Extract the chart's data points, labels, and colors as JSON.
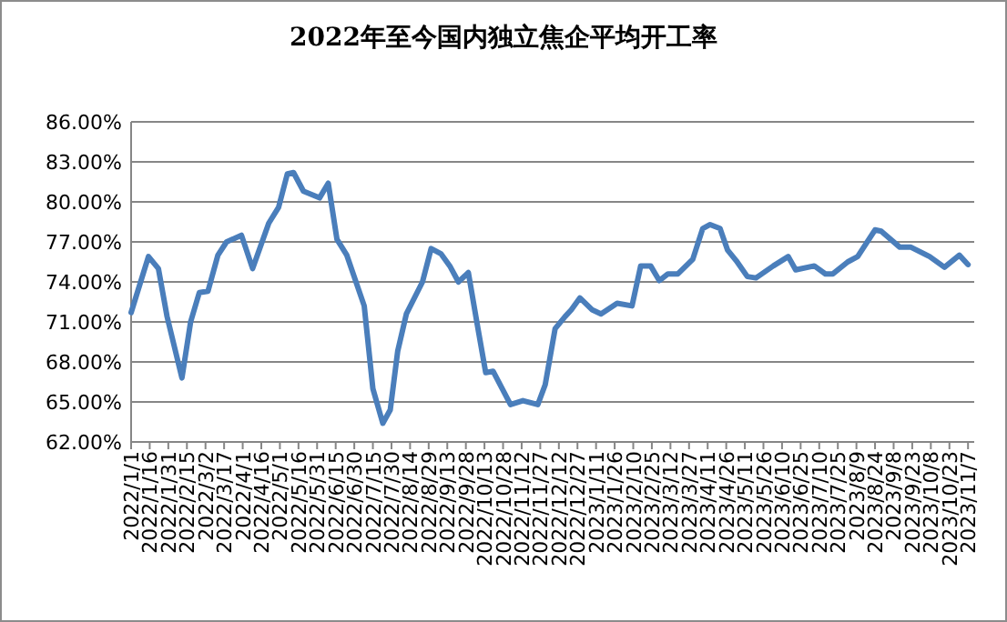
{
  "chart_data": {
    "type": "line",
    "title": "2022年至今国内独立焦企平均开工率",
    "x": [
      "2022-01-01",
      "2022-01-15",
      "2022-01-23",
      "2022-01-30",
      "2022-02-11",
      "2022-02-18",
      "2022-02-25",
      "2022-03-04",
      "2022-03-12",
      "2022-03-19",
      "2022-03-31",
      "2022-04-09",
      "2022-04-22",
      "2022-04-30",
      "2022-05-07",
      "2022-05-12",
      "2022-05-20",
      "2022-06-02",
      "2022-06-09",
      "2022-06-16",
      "2022-06-24",
      "2022-07-08",
      "2022-07-15",
      "2022-07-23",
      "2022-07-29",
      "2022-08-04",
      "2022-08-11",
      "2022-08-24",
      "2022-08-31",
      "2022-09-08",
      "2022-09-15",
      "2022-09-22",
      "2022-09-30",
      "2022-10-07",
      "2022-10-14",
      "2022-10-20",
      "2022-11-03",
      "2022-11-13",
      "2022-11-25",
      "2022-12-01",
      "2022-12-09",
      "2022-12-17",
      "2022-12-22",
      "2022-12-29",
      "2023-01-08",
      "2023-01-15",
      "2023-01-28",
      "2023-02-09",
      "2023-02-16",
      "2023-02-24",
      "2023-03-03",
      "2023-03-10",
      "2023-03-18",
      "2023-03-30",
      "2023-04-07",
      "2023-04-13",
      "2023-04-21",
      "2023-04-27",
      "2023-05-04",
      "2023-05-13",
      "2023-05-20",
      "2023-06-03",
      "2023-06-15",
      "2023-06-21",
      "2023-07-06",
      "2023-07-15",
      "2023-07-21",
      "2023-08-02",
      "2023-08-10",
      "2023-08-24",
      "2023-08-29",
      "2023-09-13",
      "2023-09-22",
      "2023-10-07",
      "2023-10-19",
      "2023-10-31",
      "2023-11-07"
    ],
    "series": [
      {
        "color": "#4a7ebb",
        "values": [
          71.7,
          75.9,
          75.0,
          71.4,
          66.8,
          71.0,
          73.2,
          73.3,
          76.0,
          77.0,
          77.5,
          75.0,
          78.4,
          79.6,
          82.1,
          82.2,
          80.8,
          80.3,
          81.4,
          77.2,
          76.0,
          72.2,
          66.0,
          63.4,
          64.4,
          68.8,
          71.6,
          74.0,
          76.5,
          76.1,
          75.2,
          74.0,
          74.7,
          70.9,
          67.2,
          67.3,
          64.8,
          65.1,
          64.8,
          66.3,
          70.5,
          71.4,
          71.9,
          72.8,
          71.9,
          71.6,
          72.4,
          72.2,
          75.2,
          75.2,
          74.1,
          74.6,
          74.6,
          75.7,
          78.0,
          78.3,
          78.0,
          76.4,
          75.6,
          74.4,
          74.3,
          75.2,
          75.9,
          74.9,
          75.2,
          74.6,
          74.6,
          75.5,
          75.9,
          77.9,
          77.8,
          76.6,
          76.6,
          75.9,
          75.1,
          76.0,
          75.3
        ]
      }
    ],
    "xlim": [
      "2022-01-01",
      "2023-11-12"
    ],
    "xticks": [
      {
        "value": "2022-01-01",
        "label": "2022/1/1"
      },
      {
        "value": "2022-01-16",
        "label": "2022/1/16"
      },
      {
        "value": "2022-01-31",
        "label": "2022/1/31"
      },
      {
        "value": "2022-02-15",
        "label": "2022/2/15"
      },
      {
        "value": "2022-03-02",
        "label": "2022/3/2"
      },
      {
        "value": "2022-03-17",
        "label": "2022/3/17"
      },
      {
        "value": "2022-04-01",
        "label": "2022/4/1"
      },
      {
        "value": "2022-04-16",
        "label": "2022/4/16"
      },
      {
        "value": "2022-05-01",
        "label": "2022/5/1"
      },
      {
        "value": "2022-05-16",
        "label": "2022/5/16"
      },
      {
        "value": "2022-05-31",
        "label": "2022/5/31"
      },
      {
        "value": "2022-06-15",
        "label": "2022/6/15"
      },
      {
        "value": "2022-06-30",
        "label": "2022/6/30"
      },
      {
        "value": "2022-07-15",
        "label": "2022/7/15"
      },
      {
        "value": "2022-07-30",
        "label": "2022/7/30"
      },
      {
        "value": "2022-08-14",
        "label": "2022/8/14"
      },
      {
        "value": "2022-08-29",
        "label": "2022/8/29"
      },
      {
        "value": "2022-09-13",
        "label": "2022/9/13"
      },
      {
        "value": "2022-09-28",
        "label": "2022/9/28"
      },
      {
        "value": "2022-10-13",
        "label": "2022/10/13"
      },
      {
        "value": "2022-10-28",
        "label": "2022/10/28"
      },
      {
        "value": "2022-11-12",
        "label": "2022/11/12"
      },
      {
        "value": "2022-11-27",
        "label": "2022/11/27"
      },
      {
        "value": "2022-12-12",
        "label": "2022/12/12"
      },
      {
        "value": "2022-12-27",
        "label": "2022/12/27"
      },
      {
        "value": "2023-01-11",
        "label": "2023/1/11"
      },
      {
        "value": "2023-01-26",
        "label": "2023/1/26"
      },
      {
        "value": "2023-02-10",
        "label": "2023/2/10"
      },
      {
        "value": "2023-02-25",
        "label": "2023/2/25"
      },
      {
        "value": "2023-03-12",
        "label": "2023/3/12"
      },
      {
        "value": "2023-03-27",
        "label": "2023/3/27"
      },
      {
        "value": "2023-04-11",
        "label": "2023/4/11"
      },
      {
        "value": "2023-04-26",
        "label": "2023/4/26"
      },
      {
        "value": "2023-05-11",
        "label": "2023/5/11"
      },
      {
        "value": "2023-05-26",
        "label": "2023/5/26"
      },
      {
        "value": "2023-06-10",
        "label": "2023/6/10"
      },
      {
        "value": "2023-06-25",
        "label": "2023/6/25"
      },
      {
        "value": "2023-07-10",
        "label": "2023/7/10"
      },
      {
        "value": "2023-07-25",
        "label": "2023/7/25"
      },
      {
        "value": "2023-08-09",
        "label": "2023/8/9"
      },
      {
        "value": "2023-08-24",
        "label": "2023/8/24"
      },
      {
        "value": "2023-09-08",
        "label": "2023/9/8"
      },
      {
        "value": "2023-09-23",
        "label": "2023/9/23"
      },
      {
        "value": "2023-10-08",
        "label": "2023/10/8"
      },
      {
        "value": "2023-10-23",
        "label": "2023/10/23"
      },
      {
        "value": "2023-11-07",
        "label": "2023/11/7"
      }
    ],
    "ylim": [
      62,
      86
    ],
    "yticks": [
      {
        "value": 62,
        "label": "62.00%"
      },
      {
        "value": 65,
        "label": "65.00%"
      },
      {
        "value": 68,
        "label": "68.00%"
      },
      {
        "value": 71,
        "label": "71.00%"
      },
      {
        "value": 74,
        "label": "74.00%"
      },
      {
        "value": 77,
        "label": "77.00%"
      },
      {
        "value": 80,
        "label": "80.00%"
      },
      {
        "value": 83,
        "label": "83.00%"
      },
      {
        "value": 86,
        "label": "86.00%"
      }
    ],
    "grid": "y",
    "marker": "none",
    "line_style": "solid"
  }
}
